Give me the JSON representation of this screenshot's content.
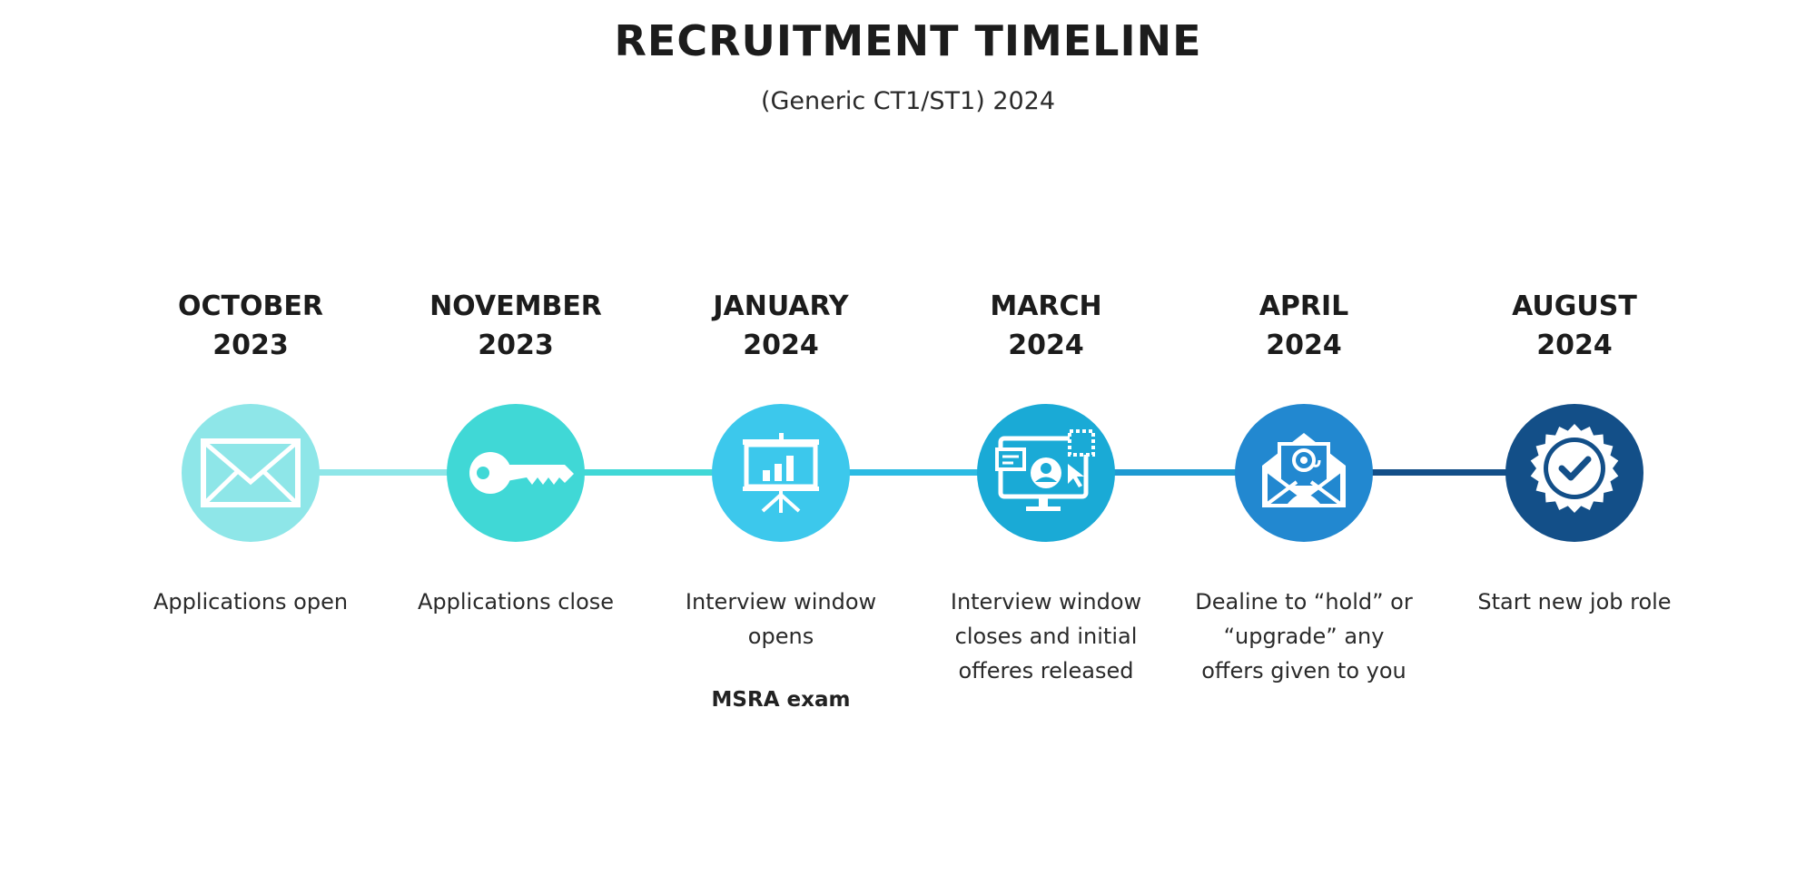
{
  "title": "RECRUITMENT TIMELINE",
  "subtitle": "(Generic CT1/ST1) 2024",
  "colors": {
    "stage1": "#8ee6e8",
    "stage2": "#40d8d6",
    "stage3": "#3cc8ec",
    "stage4": "#1aaad6",
    "stage5": "#2288d0",
    "stage6": "#134f88"
  },
  "stages": [
    {
      "month": "OCTOBER",
      "year": "2023",
      "icon": "envelope-icon",
      "description": [
        "Applications open"
      ]
    },
    {
      "month": "NOVEMBER",
      "year": "2023",
      "icon": "key-icon",
      "description": [
        "Applications close"
      ]
    },
    {
      "month": "JANUARY",
      "year": "2024",
      "icon": "presentation-chart-icon",
      "description": [
        "Interview window",
        "opens"
      ],
      "note": "MSRA exam"
    },
    {
      "month": "MARCH",
      "year": "2024",
      "icon": "monitor-profile-icon",
      "description": [
        "Interview window",
        "closes and initial",
        "offeres released"
      ]
    },
    {
      "month": "APRIL",
      "year": "2024",
      "icon": "open-mail-at-icon",
      "description": [
        "Dealine to “hold” or",
        "“upgrade” any",
        "offers given to you"
      ]
    },
    {
      "month": "AUGUST",
      "year": "2024",
      "icon": "verified-badge-icon",
      "description": [
        "Start new job role"
      ]
    }
  ]
}
